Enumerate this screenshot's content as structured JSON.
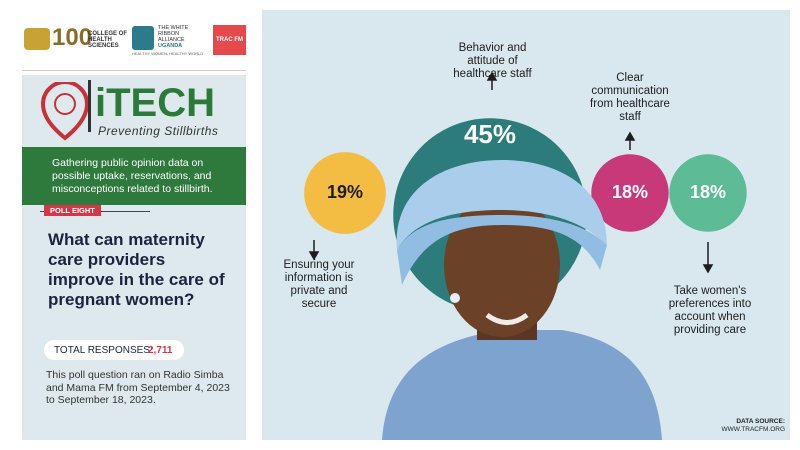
{
  "header": {
    "logos": [
      "COLLEGE OF HEALTH SCIENCES",
      "THE WHITE RIBBON ALLIANCE",
      "UGANDA",
      "HEALTHY WOMEN, HEALTHY WORLD",
      "TRAC FM"
    ]
  },
  "brand": {
    "title": "iTECH",
    "tagline": "Preventing Stillbirths"
  },
  "intro": "Gathering public opinion data on possible uptake, reservations, and misconceptions related to stillbirth.",
  "poll_label": "POLL EIGHT",
  "question": "What can maternity care providers improve in the care of pregnant women?",
  "responses": {
    "label": "TOTAL RESPONSES:",
    "value": "2,711"
  },
  "note": "This poll question ran on Radio Simba and Mama FM from September 4, 2023 to September 18, 2023.",
  "results": [
    {
      "value": 19,
      "label": "19%",
      "caption": "Ensuring your information is private and secure",
      "color": "#f2bd42"
    },
    {
      "value": 45,
      "label": "45%",
      "caption": "Behavior and attitude of healthcare staff",
      "color": "#2c7c7c"
    },
    {
      "value": 18,
      "label": "18%",
      "caption": "Clear communication from healthcare staff",
      "color": "#c8397a"
    },
    {
      "value": 18,
      "label": "18%",
      "caption": "Take women's preferences into account when providing care",
      "color": "#5dbb96"
    }
  ],
  "source": {
    "label": "DATA SOURCE:",
    "url": "WWW.TRACFM.ORG"
  }
}
